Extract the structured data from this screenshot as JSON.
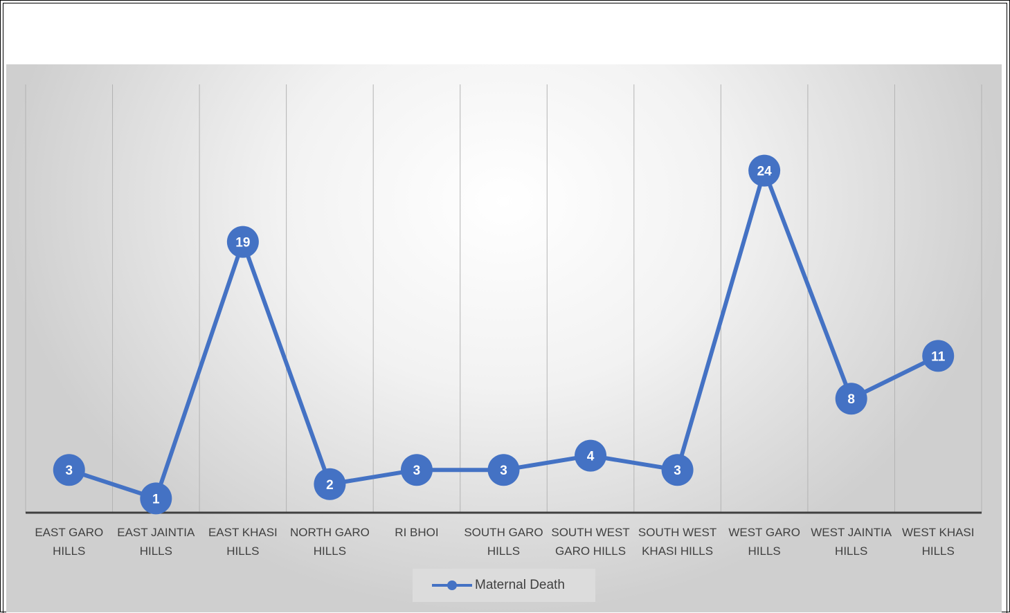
{
  "chart_data": {
    "type": "line",
    "title": "",
    "xlabel": "",
    "ylabel": "",
    "categories": [
      [
        "EAST GARO",
        "HILLS"
      ],
      [
        "EAST JAINTIA",
        "HILLS"
      ],
      [
        "EAST KHASI",
        "HILLS"
      ],
      [
        "NORTH GARO",
        "HILLS"
      ],
      [
        "RI BHOI"
      ],
      [
        "SOUTH GARO",
        "HILLS"
      ],
      [
        "SOUTH WEST",
        "GARO HILLS"
      ],
      [
        "SOUTH WEST",
        "KHASI HILLS"
      ],
      [
        "WEST GARO",
        "HILLS"
      ],
      [
        "WEST JAINTIA",
        "HILLS"
      ],
      [
        "WEST KHASI",
        "HILLS"
      ]
    ],
    "series": [
      {
        "name": "Maternal Death",
        "values": [
          3,
          1,
          19,
          2,
          3,
          3,
          4,
          3,
          24,
          8,
          11
        ],
        "labels": [
          "3",
          "1",
          "19",
          "2",
          "3",
          "3",
          "4",
          "3",
          "24",
          "8",
          "11"
        ],
        "color": "#4472c4"
      }
    ],
    "ylim": [
      0,
      30
    ],
    "grid": {
      "vertical": true,
      "horizontal": false
    },
    "legend": {
      "position": "bottom",
      "label": "Maternal Death"
    }
  }
}
